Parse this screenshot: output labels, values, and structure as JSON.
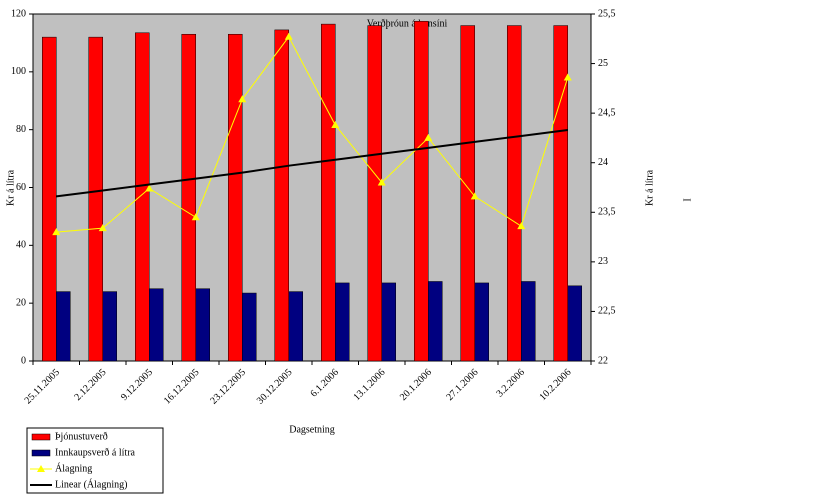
{
  "chart_data": {
    "type": "bar",
    "title": "Verðþróun á bensíni",
    "x_label": "Dagsetning",
    "y_label": "Kr á lítra",
    "y2_label": "Kr á lítra",
    "annotation": "I",
    "categories": [
      "25.11.2005",
      "2.12.2005",
      "9.12.2005",
      "16.12.2005",
      "23.12.2005",
      "30.12.2005",
      "6.1.2006",
      "13.1.2006",
      "20.1.2006",
      "27.1.2006",
      "3.2.2006",
      "10.2.2006"
    ],
    "series": [
      {
        "name": "Þjónustuverð",
        "type": "bar",
        "color": "#ff0000",
        "values": [
          112,
          112,
          113.5,
          113,
          113,
          114.5,
          116.5,
          116,
          117.5,
          116,
          116,
          116
        ]
      },
      {
        "name": "Innkaupsverð á lítra",
        "type": "bar",
        "color": "#000080",
        "values": [
          24,
          24,
          25,
          25,
          23.5,
          24,
          27,
          27,
          27.5,
          27,
          27.5,
          26
        ]
      },
      {
        "name": "Álagning",
        "type": "line",
        "axis": "y2",
        "color": "#ffff00",
        "marker": "triangle",
        "values": [
          23.3,
          23.34,
          23.74,
          23.45,
          24.64,
          25.27,
          24.38,
          23.8,
          24.25,
          23.66,
          23.36,
          24.86
        ]
      },
      {
        "name": "Linear (Álagning)",
        "type": "line",
        "axis": "y2",
        "color": "#000000",
        "values": [
          23.66,
          23.72,
          23.78,
          23.84,
          23.9,
          23.97,
          24.03,
          24.09,
          24.15,
          24.21,
          24.27,
          24.33
        ]
      }
    ],
    "ylim": [
      0,
      120
    ],
    "yticks": [
      0,
      20,
      40,
      60,
      80,
      100,
      120
    ],
    "y2lim": [
      22,
      25.5
    ],
    "y2ticks": [
      22,
      {
        "value": 22.5,
        "label": "22,5"
      },
      23,
      {
        "value": 23.5,
        "label": "23,5"
      },
      24,
      {
        "value": 24.5,
        "label": "24,5"
      },
      25,
      {
        "value": 25.5,
        "label": "25,5"
      }
    ],
    "grid": false,
    "legend": "bottom-left",
    "background": "#c0c0c0"
  }
}
